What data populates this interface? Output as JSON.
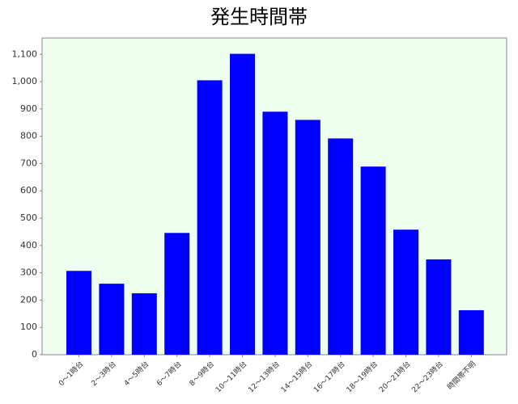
{
  "chart_data": {
    "type": "bar",
    "title": "発生時間帯",
    "categories": [
      "0～1時台",
      "2～3時台",
      "4～5時台",
      "6～7時台",
      "8～9時台",
      "10～11時台",
      "12～13時台",
      "14～15時台",
      "16～17時台",
      "18～19時台",
      "20～21時台",
      "22～23時台",
      "時間帯不明"
    ],
    "values": [
      307,
      260,
      225,
      446,
      1005,
      1102,
      890,
      860,
      792,
      689,
      458,
      349,
      163
    ],
    "color": "#0000ff",
    "ylim": [
      0,
      1160
    ],
    "yticks": [
      0,
      100,
      200,
      300,
      400,
      500,
      600,
      700,
      800,
      900,
      {
        "value": 1000,
        "label": "1,000"
      },
      {
        "value": 1100,
        "label": "1,100"
      }
    ]
  }
}
